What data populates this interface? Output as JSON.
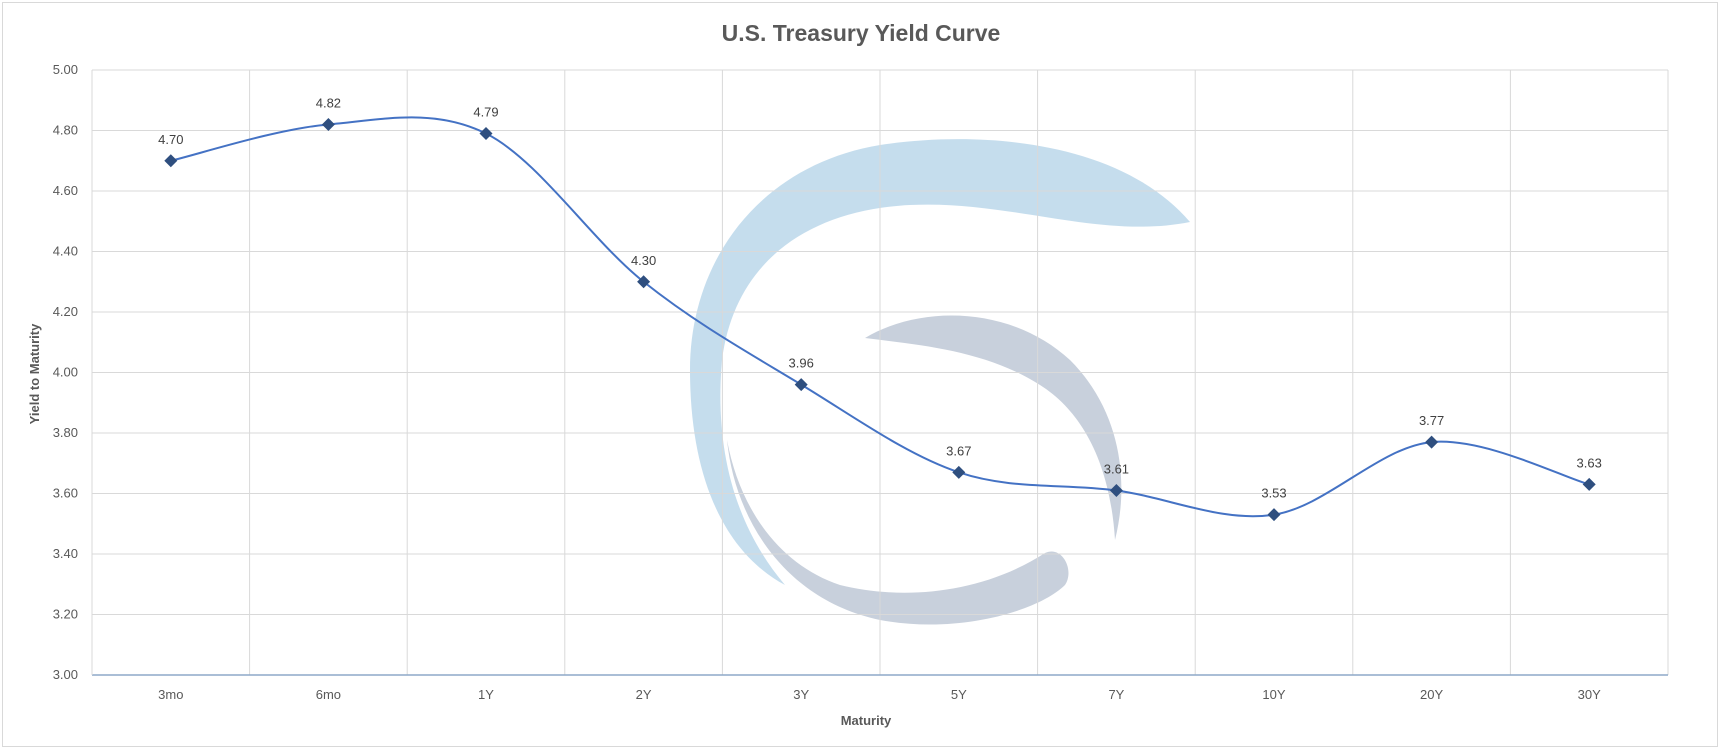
{
  "chart_data": {
    "type": "line",
    "title": "U.S. Treasury Yield Curve",
    "xlabel": "Maturity",
    "ylabel": "Yield to Maturity",
    "categories": [
      "3mo",
      "6mo",
      "1Y",
      "2Y",
      "3Y",
      "5Y",
      "7Y",
      "10Y",
      "20Y",
      "30Y"
    ],
    "series": [
      {
        "values": [
          4.7,
          4.82,
          4.79,
          4.3,
          3.96,
          3.67,
          3.61,
          3.53,
          3.77,
          3.63
        ]
      }
    ],
    "data_labels": [
      "4.70",
      "4.82",
      "4.79",
      "4.30",
      "3.96",
      "3.67",
      "3.61",
      "3.53",
      "3.77",
      "3.63"
    ],
    "y_ticks": [
      "5.00",
      "4.80",
      "4.60",
      "4.40",
      "4.20",
      "4.00",
      "3.80",
      "3.60",
      "3.40",
      "3.20",
      "3.00"
    ],
    "ylim": [
      3.0,
      5.0
    ],
    "grid": true,
    "smooth": true,
    "marker": "diamond",
    "line_color": "#4472c4",
    "marker_color": "#2f4f7f"
  }
}
